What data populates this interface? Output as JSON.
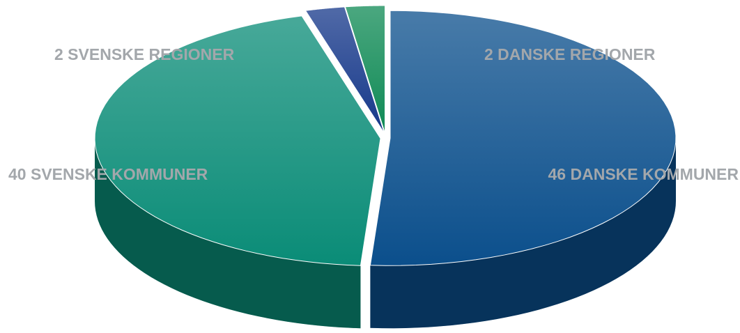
{
  "chart_data": {
    "type": "pie3d",
    "categories": [
      "46 DANSKE KOMMUNER",
      "40 SVENSKE KOMMUNER",
      "2 DANSKE REGIONER",
      "2 SVENSKE REGIONER"
    ],
    "values": [
      46,
      40,
      2,
      2
    ],
    "colors": [
      "#0b4f8c",
      "#0a8c77",
      "#16388a",
      "#0f8a55"
    ]
  }
}
